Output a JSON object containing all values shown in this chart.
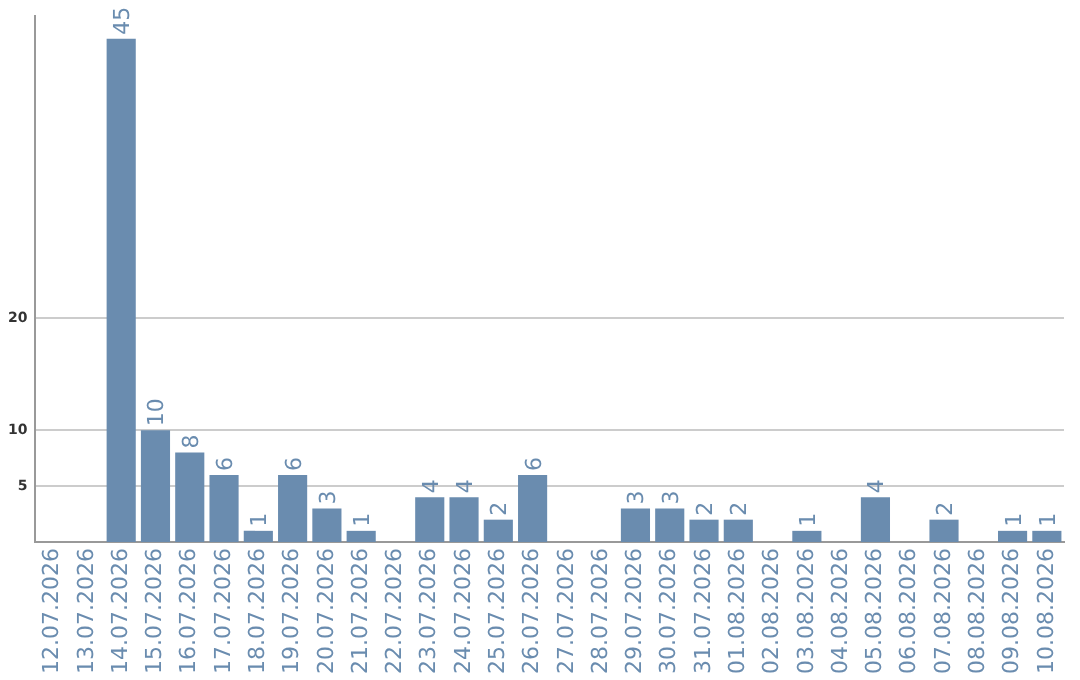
{
  "chart_data": {
    "type": "bar",
    "categories": [
      "12.07.2026",
      "13.07.2026",
      "14.07.2026",
      "15.07.2026",
      "16.07.2026",
      "17.07.2026",
      "18.07.2026",
      "19.07.2026",
      "20.07.2026",
      "21.07.2026",
      "22.07.2026",
      "23.07.2026",
      "24.07.2026",
      "25.07.2026",
      "26.07.2026",
      "27.07.2026",
      "28.07.2026",
      "29.07.2026",
      "30.07.2026",
      "31.07.2026",
      "01.08.2026",
      "02.08.2026",
      "03.08.2026",
      "04.08.2026",
      "05.08.2026",
      "06.08.2026",
      "07.08.2026",
      "08.08.2026",
      "09.08.2026",
      "10.08.2026"
    ],
    "values": [
      0,
      0,
      45,
      10,
      8,
      6,
      1,
      6,
      3,
      1,
      0,
      4,
      4,
      2,
      6,
      0,
      0,
      3,
      3,
      2,
      2,
      0,
      1,
      0,
      4,
      0,
      2,
      0,
      1,
      1
    ],
    "value_labels": [
      null,
      null,
      "45",
      "10",
      "8",
      "6",
      "1",
      "6",
      "3",
      "1",
      null,
      "4",
      "4",
      "2",
      "6",
      null,
      null,
      "3",
      "3",
      "2",
      "2",
      null,
      "1",
      null,
      "4",
      null,
      "2",
      null,
      "1",
      "1"
    ],
    "color": "#6a8caf",
    "ylim": [
      0,
      47
    ],
    "yticks": [
      5,
      10,
      20
    ],
    "grid": "y",
    "legend": false
  }
}
